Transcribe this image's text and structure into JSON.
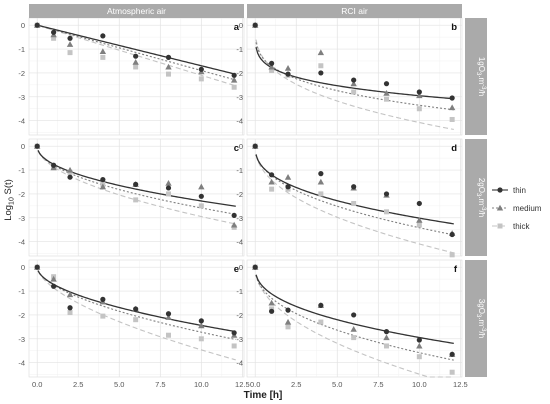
{
  "chart_data": {
    "type": "scatter",
    "xlabel": "Time [h]",
    "ylabel": "Log10 S(t)",
    "xlim": [
      -0.5,
      12.6
    ],
    "ylim": [
      -4.6,
      0.3
    ],
    "xticks": [
      0.0,
      2.5,
      5.0,
      7.5,
      10.0,
      12.5
    ],
    "xtick_labels": [
      "0.0",
      "2.5",
      "5.0",
      "7.5",
      "10.0",
      "12.5"
    ],
    "yticks": [
      0,
      -1,
      -2,
      -3,
      -4
    ],
    "ytick_labels": [
      "0",
      "-1",
      "-2",
      "-3",
      "-4"
    ],
    "columns": [
      "Atmospheric air",
      "RCI air"
    ],
    "rows": [
      {
        "prefix": "1gO",
        "sub": "3",
        "unit": ".m",
        "sup": "-3",
        "tail": "/h"
      },
      {
        "prefix": "2gO",
        "sub": "3",
        "unit": ".m",
        "sup": "-3",
        "tail": "/h"
      },
      {
        "prefix": "3gO",
        "sub": "3",
        "unit": ".m",
        "sup": "-3",
        "tail": "/h"
      }
    ],
    "legend": {
      "position": "right",
      "entries": [
        {
          "name": "thin",
          "color": "#333333",
          "marker": "circle",
          "dash": "solid"
        },
        {
          "name": "medium",
          "color": "#7f7f7f",
          "marker": "triangle",
          "dash": "dotted"
        },
        {
          "name": "thick",
          "color": "#c4c4c4",
          "marker": "square",
          "dash": "dashed"
        }
      ]
    },
    "panels": [
      {
        "label": "a",
        "row": 0,
        "col": 0,
        "points": {
          "thin": [
            [
              0,
              0
            ],
            [
              1,
              -0.3
            ],
            [
              2,
              -0.55
            ],
            [
              4,
              -0.45
            ],
            [
              6,
              -1.3
            ],
            [
              8,
              -1.35
            ],
            [
              10,
              -1.85
            ],
            [
              12,
              -2.1
            ]
          ],
          "medium": [
            [
              0,
              0
            ],
            [
              1,
              -0.4
            ],
            [
              2,
              -0.8
            ],
            [
              4,
              -1.1
            ],
            [
              6,
              -1.55
            ],
            [
              8,
              -1.75
            ],
            [
              10,
              -1.95
            ],
            [
              12,
              -2.3
            ]
          ],
          "thick": [
            [
              0,
              0
            ],
            [
              1,
              -0.55
            ],
            [
              2,
              -1.15
            ],
            [
              4,
              -1.35
            ],
            [
              6,
              -1.75
            ],
            [
              8,
              -2.05
            ],
            [
              10,
              -2.25
            ],
            [
              12,
              -2.6
            ]
          ]
        },
        "fits": {
          "thin": {
            "a": 0.17,
            "b": 1.0
          },
          "medium": {
            "a": 0.19,
            "b": 1.0
          },
          "thick": {
            "a": 0.21,
            "b": 1.0
          }
        }
      },
      {
        "label": "b",
        "row": 0,
        "col": 1,
        "points": {
          "thin": [
            [
              0,
              0
            ],
            [
              1,
              -1.6
            ],
            [
              2,
              -2.05
            ],
            [
              4,
              -2.0
            ],
            [
              6,
              -2.3
            ],
            [
              8,
              -2.45
            ],
            [
              10,
              -2.8
            ],
            [
              12,
              -3.05
            ]
          ],
          "medium": [
            [
              0,
              0
            ],
            [
              1,
              -1.75
            ],
            [
              2,
              -1.8
            ],
            [
              4,
              -1.15
            ],
            [
              6,
              -2.45
            ],
            [
              8,
              -2.85
            ],
            [
              10,
              -2.95
            ],
            [
              12,
              -3.45
            ]
          ],
          "thick": [
            [
              0,
              0
            ],
            [
              1,
              -1.9
            ],
            [
              2,
              -2.1
            ],
            [
              4,
              -1.7
            ],
            [
              6,
              -2.8
            ],
            [
              8,
              -3.1
            ],
            [
              10,
              -3.5
            ],
            [
              12,
              -3.95
            ]
          ]
        },
        "fits": {
          "thin": {
            "a": 1.78,
            "b": 0.22
          },
          "medium": {
            "a": 1.72,
            "b": 0.29
          },
          "thick": {
            "a": 1.78,
            "b": 0.36
          }
        }
      },
      {
        "label": "c",
        "row": 1,
        "col": 0,
        "points": {
          "thin": [
            [
              0,
              0
            ],
            [
              1,
              -0.8
            ],
            [
              2,
              -1.3
            ],
            [
              4,
              -1.4
            ],
            [
              6,
              -1.6
            ],
            [
              8,
              -1.75
            ],
            [
              10,
              -2.1
            ],
            [
              12,
              -2.9
            ]
          ],
          "medium": [
            [
              0,
              0
            ],
            [
              1,
              -0.9
            ],
            [
              2,
              -1.0
            ],
            [
              4,
              -1.7
            ],
            [
              6,
              -1.6
            ],
            [
              8,
              -1.55
            ],
            [
              10,
              -1.7
            ],
            [
              12,
              -3.3
            ]
          ],
          "thick": [
            [
              0,
              0
            ],
            [
              1,
              -0.9
            ],
            [
              2,
              -1.1
            ],
            [
              4,
              -1.6
            ],
            [
              6,
              -2.25
            ],
            [
              8,
              -2.0
            ],
            [
              10,
              -2.5
            ],
            [
              12,
              -3.4
            ]
          ]
        },
        "fits": {
          "thin": {
            "a": 0.76,
            "b": 0.48
          },
          "medium": {
            "a": 0.8,
            "b": 0.51
          },
          "thick": {
            "a": 0.87,
            "b": 0.53
          }
        }
      },
      {
        "label": "d",
        "row": 1,
        "col": 1,
        "points": {
          "thin": [
            [
              0,
              0
            ],
            [
              1,
              -1.2
            ],
            [
              2,
              -1.7
            ],
            [
              4,
              -1.15
            ],
            [
              6,
              -1.7
            ],
            [
              8,
              -2.0
            ],
            [
              10,
              -2.4
            ],
            [
              12,
              -3.7
            ]
          ],
          "medium": [
            [
              0,
              0
            ],
            [
              1,
              -1.5
            ],
            [
              2,
              -1.3
            ],
            [
              4,
              -1.5
            ],
            [
              6,
              -1.75
            ],
            [
              8,
              -2.05
            ],
            [
              10,
              -3.1
            ],
            [
              12,
              -3.65
            ]
          ],
          "thick": [
            [
              0,
              0
            ],
            [
              1,
              -1.8
            ],
            [
              2,
              -1.8
            ],
            [
              4,
              -2.0
            ],
            [
              6,
              -2.4
            ],
            [
              8,
              -2.75
            ],
            [
              10,
              -3.3
            ],
            [
              12,
              -4.55
            ]
          ]
        },
        "fits": {
          "thin": {
            "a": 1.2,
            "b": 0.4
          },
          "medium": {
            "a": 1.24,
            "b": 0.44
          },
          "thick": {
            "a": 1.42,
            "b": 0.46
          }
        }
      },
      {
        "label": "e",
        "row": 2,
        "col": 0,
        "points": {
          "thin": [
            [
              0,
              0
            ],
            [
              1,
              -0.8
            ],
            [
              2,
              -1.7
            ],
            [
              4,
              -1.35
            ],
            [
              6,
              -1.75
            ],
            [
              8,
              -1.95
            ],
            [
              10,
              -2.25
            ],
            [
              12,
              -2.75
            ]
          ],
          "medium": [
            [
              0,
              0
            ],
            [
              1,
              -0.5
            ],
            [
              2,
              -1.15
            ],
            [
              4,
              -1.45
            ],
            [
              6,
              -1.75
            ],
            [
              8,
              -2.1
            ],
            [
              10,
              -2.45
            ],
            [
              12,
              -2.85
            ]
          ],
          "thick": [
            [
              0,
              0
            ],
            [
              1,
              -0.4
            ],
            [
              2,
              -1.9
            ],
            [
              4,
              -2.05
            ],
            [
              6,
              -2.2
            ],
            [
              8,
              -2.85
            ],
            [
              10,
              -3.0
            ],
            [
              12,
              -3.3
            ]
          ]
        },
        "fits": {
          "thin": {
            "a": 0.72,
            "b": 0.53
          },
          "medium": {
            "a": 0.75,
            "b": 0.56
          },
          "thick": {
            "a": 0.87,
            "b": 0.6
          }
        }
      },
      {
        "label": "f",
        "row": 2,
        "col": 1,
        "points": {
          "thin": [
            [
              0,
              0
            ],
            [
              1,
              -1.85
            ],
            [
              2,
              -1.8
            ],
            [
              4,
              -1.6
            ],
            [
              6,
              -2.0
            ],
            [
              8,
              -2.7
            ],
            [
              10,
              -3.05
            ],
            [
              12,
              -3.65
            ]
          ],
          "medium": [
            [
              0,
              0
            ],
            [
              1,
              -1.5
            ],
            [
              2,
              -2.3
            ],
            [
              4,
              -1.6
            ],
            [
              6,
              -2.6
            ],
            [
              8,
              -2.95
            ],
            [
              10,
              -3.3
            ],
            [
              12,
              -3.65
            ]
          ],
          "thick": [
            [
              0,
              0
            ],
            [
              1,
              -1.75
            ],
            [
              2,
              -2.5
            ],
            [
              4,
              -2.3
            ],
            [
              6,
              -2.95
            ],
            [
              8,
              -3.3
            ],
            [
              10,
              -3.75
            ],
            [
              12,
              -4.4
            ]
          ]
        },
        "fits": {
          "thin": {
            "a": 1.12,
            "b": 0.42
          },
          "medium": {
            "a": 1.3,
            "b": 0.44
          },
          "thick": {
            "a": 1.45,
            "b": 0.49
          }
        }
      }
    ]
  }
}
